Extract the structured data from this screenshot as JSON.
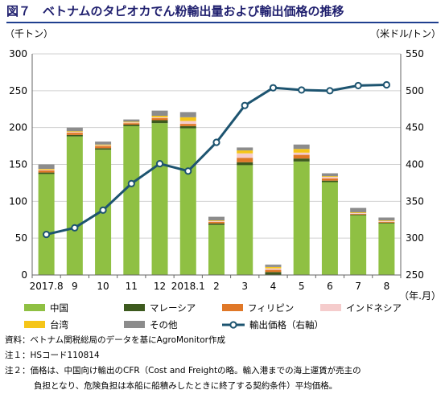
{
  "title": "図７　ベトナムのタピオカでん粉輸出量および輸出価格の推移",
  "chart_data": {
    "type": "bar",
    "stacked": true,
    "title": "図７　ベトナムのタピオカでん粉輸出量および輸出価格の推移",
    "y_left_label": "（千トン）",
    "y_right_label": "（米ドル/トン）",
    "x_unit_label": "（年.月）",
    "categories": [
      "2017.8",
      "9",
      "10",
      "11",
      "12",
      "2018.1",
      "2",
      "3",
      "4",
      "5",
      "6",
      "7",
      "8"
    ],
    "ylim_left": [
      0,
      300
    ],
    "yticks_left": [
      0,
      50,
      100,
      150,
      200,
      250,
      300
    ],
    "ylim_right": [
      250,
      550
    ],
    "yticks_right": [
      250,
      300,
      350,
      400,
      450,
      500,
      550
    ],
    "grid": true,
    "series": [
      {
        "name": "中国",
        "color": "#8fc043",
        "values": [
          137,
          188,
          170,
          202,
          206,
          199,
          68,
          149,
          null,
          154,
          126,
          81,
          70
        ]
      },
      {
        "name": "マレーシア",
        "color": "#3d5a1e",
        "values": [
          2,
          2,
          2,
          2,
          4,
          3,
          2,
          4,
          4,
          4,
          2,
          1,
          1
        ]
      },
      {
        "name": "フィリピン",
        "color": "#e07828",
        "values": [
          3,
          3,
          3,
          2,
          3,
          3,
          2,
          6,
          3,
          5,
          3,
          1,
          1
        ]
      },
      {
        "name": "インドネシア",
        "color": "#f5cccc",
        "values": [
          1,
          1,
          1,
          1,
          1,
          4,
          1,
          6,
          2,
          3,
          2,
          1,
          1
        ]
      },
      {
        "name": "台湾",
        "color": "#f5c518",
        "values": [
          1,
          1,
          1,
          1,
          2,
          5,
          1,
          4,
          2,
          5,
          1,
          1,
          1
        ]
      },
      {
        "name": "その他",
        "color": "#8c8c8c",
        "values": [
          6,
          5,
          4,
          3,
          7,
          7,
          5,
          4,
          3,
          6,
          4,
          6,
          4
        ]
      }
    ],
    "line_series": {
      "name": "輸出価格（右軸）",
      "axis": "right",
      "color": "#1d5470",
      "values": [
        305,
        314,
        338,
        374,
        401,
        391,
        430,
        480,
        504,
        501,
        500,
        507,
        508
      ]
    },
    "legend_placement": "bottom"
  },
  "notes": [
    {
      "label": "資料",
      "sep": "：",
      "text": "ベトナム関税総局のデータを基にAgroMonitor作成"
    },
    {
      "label": "注１",
      "sep": "：",
      "text": "HSコード110814"
    },
    {
      "label": "注２",
      "sep": "：",
      "text": "価格は、中国向け輸出のCFR（Cost and Freightの略。輸入港までの海上運賃が売主の"
    }
  ],
  "notes_cont": "負担となり、危険負担は本船に船積みしたときに終了する契約条件）平均価格。"
}
